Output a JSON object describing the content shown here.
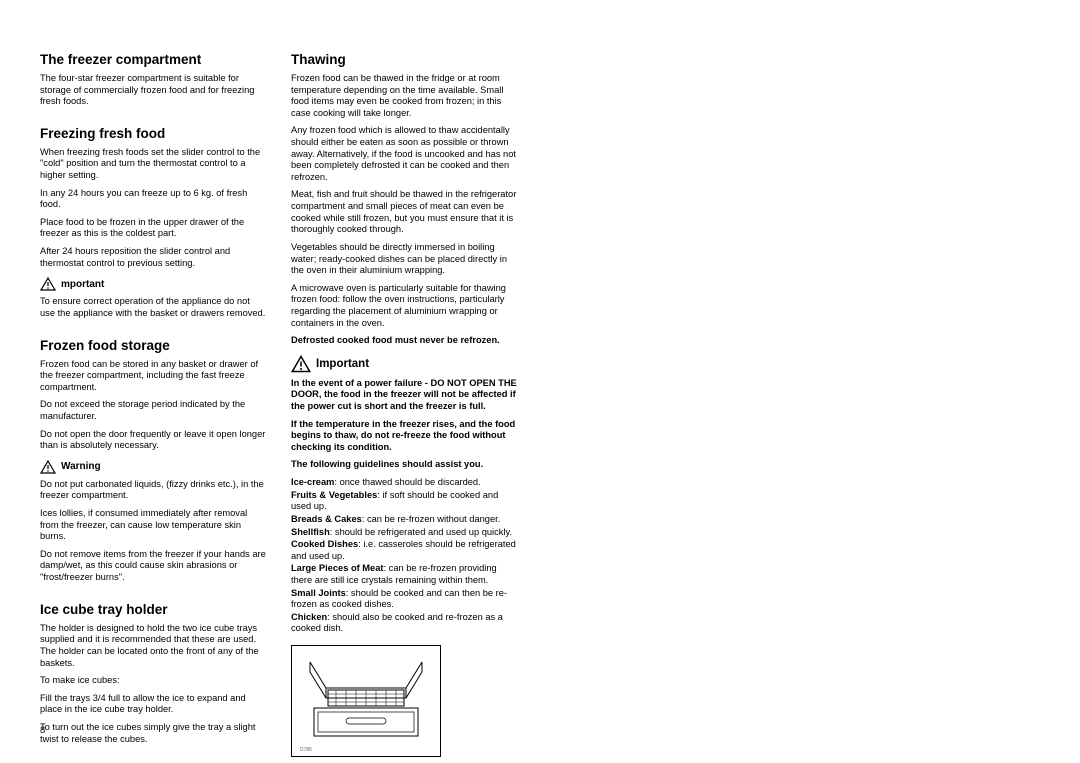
{
  "pageNumber": "8",
  "col1": {
    "h1": "The freezer compartment",
    "p1": "The four-star freezer compartment is suitable for storage of commercially frozen food and for freezing fresh foods.",
    "h2": "Freezing fresh food",
    "p2": "When freezing fresh foods set the slider control to the \"cold\" position and turn the thermostat control to a higher setting.",
    "p3": "In any 24 hours you can freeze up to 6 kg. of fresh food.",
    "p4": "Place food to be frozen in the upper drawer of the freezer as this is the coldest part.",
    "p5": "After 24 hours reposition the slider control and thermostat control to previous setting.",
    "importantLabel": "mportant",
    "p6": "To ensure correct operation of the appliance do not use the appliance with the basket or drawers removed.",
    "h3": "Frozen food storage",
    "p7": "Frozen food can be stored in any basket or drawer of the freezer compartment, including the fast freeze compartment.",
    "p8": "Do not exceed the storage period indicated by the manufacturer.",
    "p9": "Do not open the door frequently or leave it open longer than is absolutely necessary.",
    "warningLabel": "Warning",
    "p10": "Do not put carbonated liquids, (fizzy drinks etc.), in the freezer compartment.",
    "p11": "Ices lollies, if consumed immediately after removal from the freezer, can cause low temperature skin burns.",
    "p12": "Do not remove items from the freezer if your hands are damp/wet, as this could cause skin abrasions or \"frost/freezer burns\".",
    "h4": "Ice cube tray holder",
    "p13": "The holder is designed to hold the two ice cube trays supplied and it is recommended that these are used. The holder can be located onto the front of any of the baskets.",
    "p14": "To make ice cubes:",
    "p15": "Fill the trays 3/4 full to allow the ice to expand and place in the ice cube tray holder.",
    "p16": "To turn out the ice cubes simply give the tray a slight twist to release the cubes."
  },
  "col2": {
    "h1": "Thawing",
    "p1": "Frozen food can be thawed in the fridge or at room temperature depending on the time available. Small food items may even be cooked from frozen; in this case cooking will take longer.",
    "p2": "Any frozen food which is allowed to thaw accidentally should either be eaten as soon as possible or thrown away. Alternatively, if the food is uncooked and has not been completely defrosted it can be cooked and then refrozen.",
    "p3": "Meat, fish and fruit should be thawed in the refrigerator compartment and small pieces of meat can even be cooked while still frozen, but you must ensure that it is thoroughly cooked through.",
    "p4": "Vegetables should be directly immersed in boiling water; ready-cooked dishes can be placed directly in the oven in their aluminium wrapping.",
    "p5": "A microwave oven is particularly suitable for thawing frozen food: follow the oven instructions, particularly regarding the placement of aluminium wrapping or containers in the oven.",
    "p6": "Defrosted cooked food must never be refrozen.",
    "importantLabel": "Important",
    "p7": "In the event of a power failure - DO NOT OPEN THE DOOR, the food in the freezer will not be affected if the power cut is short and the freezer is full.",
    "p8": "If the temperature in the freezer rises, and the food begins to thaw, do not re-freeze the food without checking its condition.",
    "p9": "The following guidelines should assist you.",
    "guides": [
      {
        "label": "Ice-cream",
        "text": ": once thawed should be discarded."
      },
      {
        "label": "Fruits & Vegetables",
        "text": ": if soft should be cooked and used up."
      },
      {
        "label": "Breads & Cakes",
        "text": ": can be re-frozen without danger."
      },
      {
        "label": "Shellfish",
        "text": ": should be refrigerated and used up quickly."
      },
      {
        "label": "Cooked Dishes",
        "text": ": i.e. casseroles should be refrigerated and used up."
      },
      {
        "label": "Large Pieces of Meat",
        "text": ": can be re-frozen providing there are still ice crystals remaining within them."
      },
      {
        "label": "Small Joints",
        "text": ": should be cooked and can then be re-frozen as cooked dishes."
      },
      {
        "label": "Chicken",
        "text": ": should also be cooked and re-frozen as a cooked dish."
      }
    ],
    "diagramLabel": "D785"
  }
}
